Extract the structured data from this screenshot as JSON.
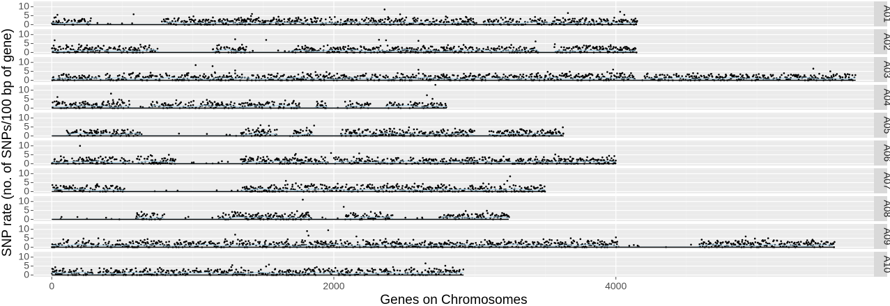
{
  "chart_data": {
    "type": "scatter",
    "title": "",
    "xlabel": "Genes on Chromosomes",
    "ylabel": "SNP rate (no. of SNPs/100 bp of gene)",
    "x_ticks": [
      0,
      2000,
      4000
    ],
    "y_ticks": [
      0,
      5,
      10
    ],
    "xlim": [
      -130,
      5830
    ],
    "ylim": [
      -1,
      13
    ],
    "grid": true,
    "facet_strip": "right",
    "colors": {
      "panel_bg": "#ebebeb",
      "strip_bg": "#d9d9d9",
      "grid_major": "#ffffff",
      "point": "#000000",
      "smooth_line": "#9ecae1"
    },
    "panels": [
      {
        "name": "A01",
        "genes": 4150,
        "seed": 11,
        "gaps": [
          [
            280,
            780
          ],
          [
            3000,
            3060
          ]
        ],
        "outliers": [
          [
            40,
            5.5
          ],
          [
            580,
            5.8
          ],
          [
            1420,
            6.0
          ],
          [
            2360,
            8.5
          ],
          [
            2470,
            5.8
          ],
          [
            3660,
            6.5
          ],
          [
            4030,
            7.2
          ],
          [
            4060,
            5.5
          ]
        ]
      },
      {
        "name": "A02",
        "genes": 4150,
        "seed": 23,
        "gaps": [
          [
            750,
            1140
          ],
          [
            1380,
            1680
          ],
          [
            3450,
            3560
          ]
        ],
        "outliers": [
          [
            20,
            6.8
          ],
          [
            1300,
            7.4
          ],
          [
            1520,
            7.0
          ],
          [
            2320,
            7.1
          ],
          [
            2370,
            6.8
          ],
          [
            2600,
            6.5
          ],
          [
            3430,
            6.2
          ]
        ]
      },
      {
        "name": "A03",
        "genes": 5700,
        "seed": 37,
        "gaps": [
          [
            350,
            380
          ],
          [
            4140,
            4200
          ]
        ],
        "outliers": [
          [
            1020,
            8.5
          ],
          [
            1140,
            7.9
          ],
          [
            1300,
            5.5
          ],
          [
            2600,
            5.9
          ],
          [
            3980,
            6.0
          ],
          [
            5400,
            6.5
          ],
          [
            5520,
            5.0
          ]
        ]
      },
      {
        "name": "A04",
        "genes": 2800,
        "seed": 41,
        "gaps": [
          [
            560,
            700
          ],
          [
            1760,
            1870
          ],
          [
            1950,
            2080
          ],
          [
            2260,
            2370
          ]
        ],
        "outliers": [
          [
            40,
            6.2
          ],
          [
            420,
            8.1
          ],
          [
            2720,
            13.0
          ],
          [
            2660,
            7.2
          ],
          [
            2700,
            5.2
          ]
        ]
      },
      {
        "name": "A05",
        "genes": 3630,
        "seed": 53,
        "gaps": [
          [
            0,
            100
          ],
          [
            630,
            1340
          ],
          [
            1600,
            1700
          ],
          [
            1850,
            2050
          ],
          [
            3000,
            3100
          ]
        ],
        "outliers": [
          [
            1480,
            6.0
          ],
          [
            1540,
            5.7
          ],
          [
            1860,
            5.8
          ]
        ]
      },
      {
        "name": "A06",
        "genes": 4000,
        "seed": 67,
        "gaps": [
          [
            550,
            600
          ],
          [
            880,
            1340
          ],
          [
            1950,
            2000
          ]
        ],
        "outliers": [
          [
            200,
            10.0
          ],
          [
            830,
            5.0
          ],
          [
            1730,
            5.5
          ],
          [
            1980,
            6.0
          ],
          [
            2180,
            5.8
          ],
          [
            3570,
            5.2
          ]
        ]
      },
      {
        "name": "A07",
        "genes": 3500,
        "seed": 71,
        "gaps": [
          [
            520,
            1350
          ]
        ],
        "outliers": [
          [
            1660,
            6.0
          ],
          [
            3250,
            8.5
          ],
          [
            3230,
            6.0
          ]
        ]
      },
      {
        "name": "A08",
        "genes": 3240,
        "seed": 83,
        "gaps": [
          [
            0,
            600
          ],
          [
            800,
            1180
          ],
          [
            1840,
            2080
          ],
          [
            2420,
            2770
          ]
        ],
        "outliers": [
          [
            1780,
            11.0
          ],
          [
            2070,
            7.0
          ]
        ]
      },
      {
        "name": "A09",
        "genes": 5550,
        "seed": 97,
        "gaps": [
          [
            4020,
            4580
          ]
        ],
        "outliers": [
          [
            330,
            5.0
          ],
          [
            1300,
            7.0
          ],
          [
            1810,
            9.0
          ],
          [
            1820,
            6.5
          ],
          [
            1960,
            9.5
          ],
          [
            2160,
            6.0
          ],
          [
            3680,
            5.0
          ],
          [
            4000,
            5.5
          ],
          [
            4920,
            6.0
          ],
          [
            5080,
            5.0
          ]
        ]
      },
      {
        "name": "A10",
        "genes": 2920,
        "seed": 109,
        "gaps": [
          [
            290,
            330
          ]
        ],
        "outliers": [
          [
            1280,
            5.5
          ],
          [
            1540,
            5.8
          ],
          [
            2650,
            6.5
          ],
          [
            2790,
            5.2
          ]
        ]
      }
    ]
  }
}
